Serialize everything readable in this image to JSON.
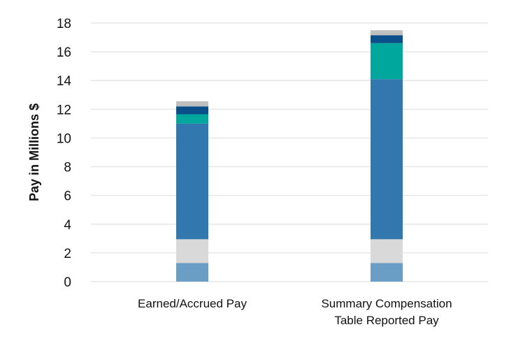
{
  "chart_data": {
    "type": "bar",
    "stacked": true,
    "title": "",
    "xlabel": "",
    "ylabel": "Pay in Millions $",
    "ylim": [
      0,
      18
    ],
    "yticks": [
      0,
      2,
      4,
      6,
      8,
      10,
      12,
      14,
      16,
      18
    ],
    "grid": true,
    "legend": "none",
    "categories": [
      [
        "Earned/Accrued Pay"
      ],
      [
        "Summary Compensation",
        "Table Reported Pay"
      ]
    ],
    "series": [
      {
        "color": "#6a9ec5",
        "values": [
          1.3,
          1.3
        ]
      },
      {
        "color": "#d9d9d9",
        "values": [
          1.65,
          1.65
        ]
      },
      {
        "color": "#3278ae",
        "values": [
          8.05,
          11.15
        ]
      },
      {
        "color": "#00a79d",
        "values": [
          0.65,
          2.5
        ]
      },
      {
        "color": "#0b4f8a",
        "values": [
          0.55,
          0.55
        ]
      },
      {
        "color": "#bfbfbf",
        "values": [
          0.35,
          0.35
        ]
      }
    ]
  }
}
